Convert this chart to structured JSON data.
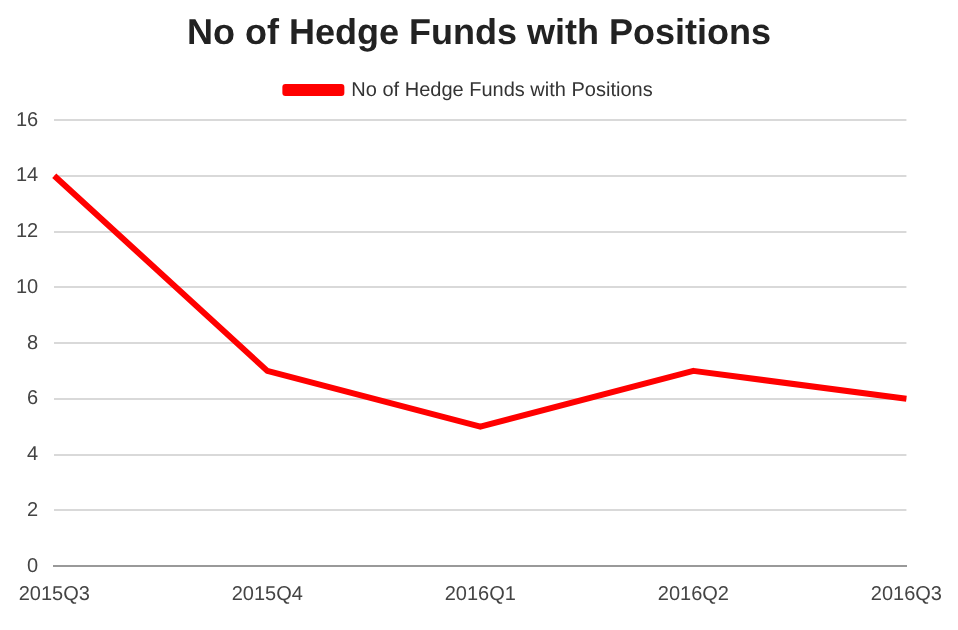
{
  "chart_data": {
    "type": "line",
    "title": "No of Hedge Funds with Positions",
    "categories": [
      "2015Q3",
      "2015Q4",
      "2016Q1",
      "2016Q2",
      "2016Q3"
    ],
    "series": [
      {
        "name": "No of Hedge Funds with Positions",
        "color": "#ff0000",
        "values": [
          14,
          7,
          5,
          7,
          6
        ]
      }
    ],
    "ylim": [
      0,
      16
    ],
    "yticks": [
      0,
      2,
      4,
      6,
      8,
      10,
      12,
      14,
      16
    ],
    "grid": "y",
    "legend": "top",
    "marker": "none",
    "line_style": "solid"
  }
}
